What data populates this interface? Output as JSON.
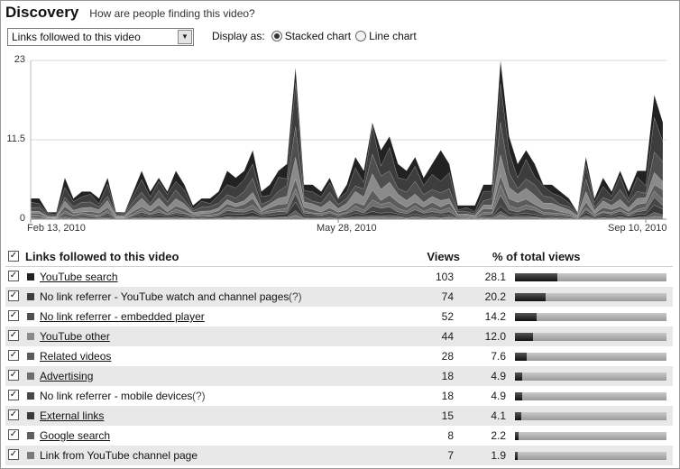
{
  "header": {
    "title": "Discovery",
    "subtitle": "How are people finding this video?"
  },
  "controls": {
    "dropdown_value": "Links followed to this video",
    "display_as_label": "Display as:",
    "options": [
      {
        "label": "Stacked chart",
        "selected": true
      },
      {
        "label": "Line chart",
        "selected": false
      }
    ]
  },
  "chart_data": {
    "type": "area",
    "stacked": true,
    "y_ticks": [
      "23",
      "11.5",
      "0"
    ],
    "ylim": [
      0,
      23
    ],
    "x_tick_labels": [
      "Feb 13, 2010",
      "May 28, 2010",
      "Sep 10, 2010"
    ],
    "x_tick_index": [
      0,
      36,
      72
    ],
    "n_points": 75,
    "total": [
      3,
      3,
      1,
      1,
      6,
      3,
      4,
      4,
      3,
      6,
      1,
      1,
      4,
      7,
      4,
      6,
      4,
      7,
      5,
      2,
      3,
      3,
      4,
      7,
      6,
      7,
      10,
      4,
      5,
      7,
      8,
      22,
      5,
      5,
      4,
      6,
      3,
      5,
      9,
      7,
      14,
      10,
      12,
      8,
      7,
      9,
      6,
      8,
      10,
      8,
      2,
      2,
      2,
      5,
      5,
      23,
      12,
      8,
      10,
      8,
      5,
      5,
      4,
      3,
      1,
      9,
      3,
      6,
      4,
      7,
      4,
      7,
      7,
      18,
      14
    ],
    "series": [
      {
        "name": "YouTube search",
        "color": "#222222",
        "share": 0.281
      },
      {
        "name": "No link referrer - YouTube watch and channel pages",
        "color": "#3d3d3d",
        "share": 0.202
      },
      {
        "name": "No link referrer - embedded player",
        "color": "#4f4f4f",
        "share": 0.142
      },
      {
        "name": "YouTube other",
        "color": "#8a8a8a",
        "share": 0.12
      },
      {
        "name": "Related videos",
        "color": "#5c5c5c",
        "share": 0.076
      },
      {
        "name": "Advertising",
        "color": "#6e6e6e",
        "share": 0.049
      },
      {
        "name": "No link referrer - mobile devices",
        "color": "#474747",
        "share": 0.049
      },
      {
        "name": "External links",
        "color": "#393939",
        "share": 0.041
      },
      {
        "name": "Google search",
        "color": "#606060",
        "share": 0.022
      },
      {
        "name": "Link from YouTube channel page",
        "color": "#7a7a7a",
        "share": 0.019
      }
    ]
  },
  "table": {
    "header_label": "Links followed to this video",
    "header_views": "Views",
    "header_pct": "% of total views",
    "rows": [
      {
        "name": "YouTube search",
        "hint": "",
        "link": true,
        "views": "103",
        "pct": "28.1",
        "share": 0.281,
        "color": "#222222",
        "checked": true
      },
      {
        "name": "No link referrer - YouTube watch and channel pages",
        "hint": " (?)",
        "link": false,
        "views": "74",
        "pct": "20.2",
        "share": 0.202,
        "color": "#3d3d3d",
        "checked": true
      },
      {
        "name": "No link referrer - embedded player",
        "hint": "",
        "link": true,
        "views": "52",
        "pct": "14.2",
        "share": 0.142,
        "color": "#4f4f4f",
        "checked": true
      },
      {
        "name": "YouTube other",
        "hint": "",
        "link": true,
        "views": "44",
        "pct": "12.0",
        "share": 0.12,
        "color": "#8a8a8a",
        "checked": true
      },
      {
        "name": "Related videos",
        "hint": "",
        "link": true,
        "views": "28",
        "pct": "7.6",
        "share": 0.076,
        "color": "#5c5c5c",
        "checked": true
      },
      {
        "name": "Advertising",
        "hint": "",
        "link": true,
        "views": "18",
        "pct": "4.9",
        "share": 0.049,
        "color": "#6e6e6e",
        "checked": true
      },
      {
        "name": "No link referrer - mobile devices",
        "hint": " (?)",
        "link": false,
        "views": "18",
        "pct": "4.9",
        "share": 0.049,
        "color": "#474747",
        "checked": true
      },
      {
        "name": "External links",
        "hint": "",
        "link": true,
        "views": "15",
        "pct": "4.1",
        "share": 0.041,
        "color": "#393939",
        "checked": true
      },
      {
        "name": "Google search",
        "hint": "",
        "link": true,
        "views": "8",
        "pct": "2.2",
        "share": 0.022,
        "color": "#606060",
        "checked": true
      },
      {
        "name": "Link from YouTube channel page",
        "hint": "",
        "link": false,
        "views": "7",
        "pct": "1.9",
        "share": 0.019,
        "color": "#7a7a7a",
        "checked": true
      }
    ]
  }
}
